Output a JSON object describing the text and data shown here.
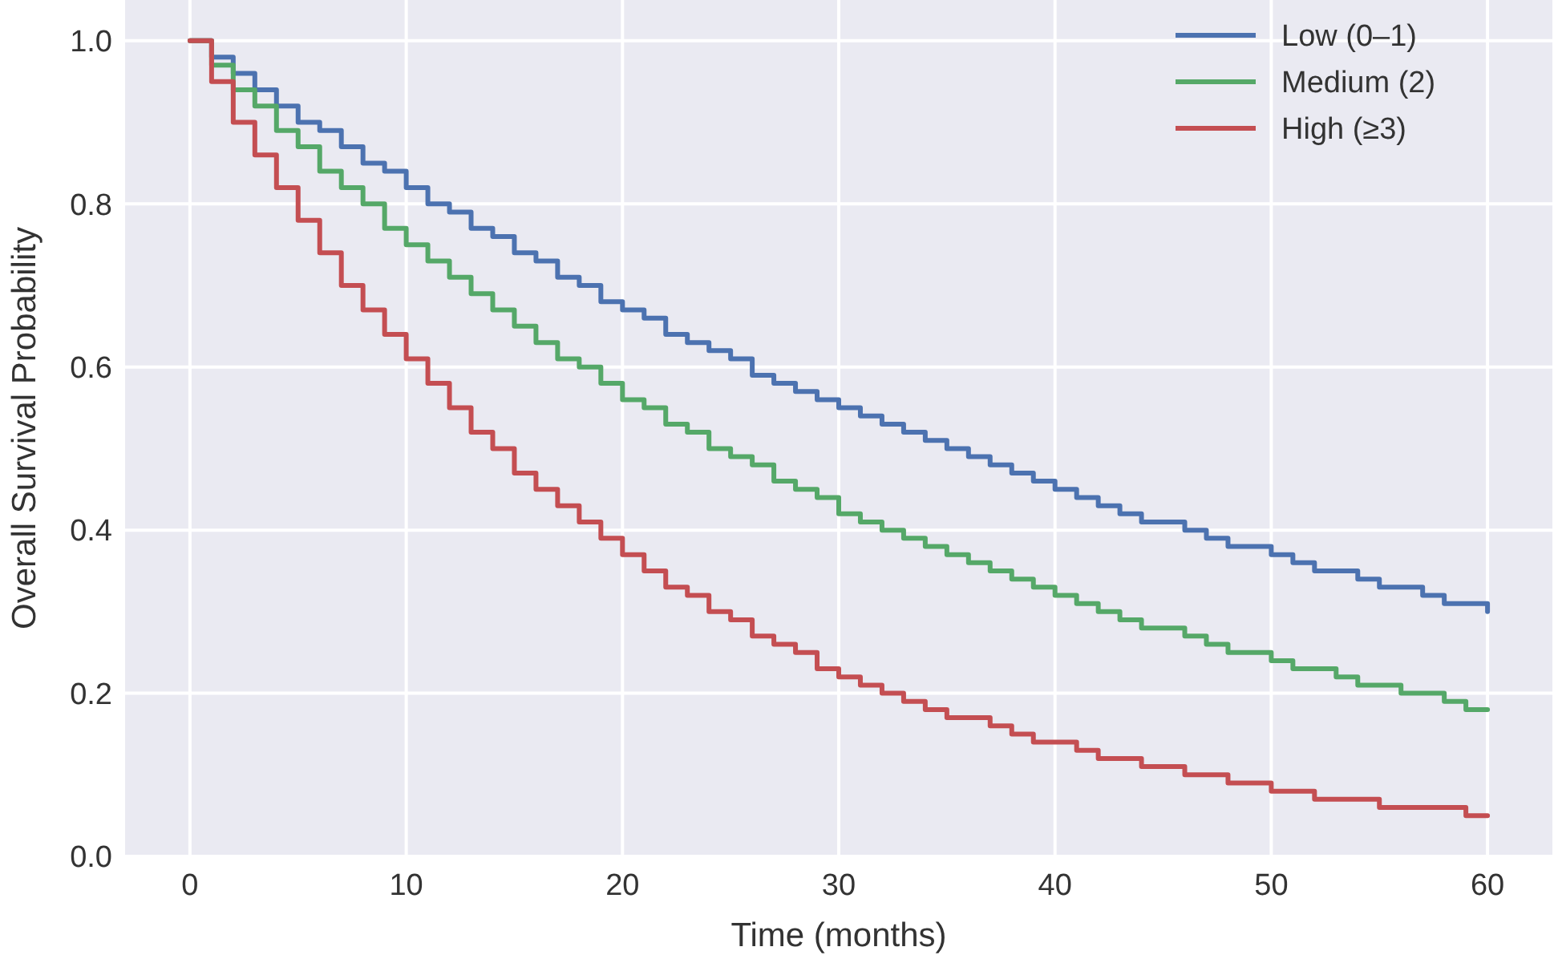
{
  "chart_data": {
    "type": "step",
    "xlabel": "Time (months)",
    "ylabel": "Overall Survival Probability",
    "x": [
      0,
      1,
      2,
      3,
      4,
      5,
      6,
      7,
      8,
      9,
      10,
      11,
      12,
      13,
      14,
      15,
      16,
      17,
      18,
      19,
      20,
      21,
      22,
      23,
      24,
      25,
      26,
      27,
      28,
      29,
      30,
      31,
      32,
      33,
      34,
      35,
      36,
      37,
      38,
      39,
      40,
      41,
      42,
      43,
      44,
      45,
      46,
      47,
      48,
      49,
      50,
      51,
      52,
      53,
      54,
      55,
      56,
      57,
      58,
      59,
      60
    ],
    "series": [
      {
        "name": "Low (0–1)",
        "color": "#4c72b0",
        "values": [
          1.0,
          0.98,
          0.96,
          0.94,
          0.92,
          0.9,
          0.89,
          0.87,
          0.85,
          0.84,
          0.82,
          0.8,
          0.79,
          0.77,
          0.76,
          0.74,
          0.73,
          0.71,
          0.7,
          0.68,
          0.67,
          0.66,
          0.64,
          0.63,
          0.62,
          0.61,
          0.59,
          0.58,
          0.57,
          0.56,
          0.55,
          0.54,
          0.53,
          0.52,
          0.51,
          0.5,
          0.49,
          0.48,
          0.47,
          0.46,
          0.45,
          0.44,
          0.43,
          0.42,
          0.41,
          0.41,
          0.4,
          0.39,
          0.38,
          0.38,
          0.37,
          0.36,
          0.35,
          0.35,
          0.34,
          0.33,
          0.33,
          0.32,
          0.31,
          0.31,
          0.3
        ]
      },
      {
        "name": "Medium (2)",
        "color": "#55a868",
        "values": [
          1.0,
          0.97,
          0.94,
          0.92,
          0.89,
          0.87,
          0.84,
          0.82,
          0.8,
          0.77,
          0.75,
          0.73,
          0.71,
          0.69,
          0.67,
          0.65,
          0.63,
          0.61,
          0.6,
          0.58,
          0.56,
          0.55,
          0.53,
          0.52,
          0.5,
          0.49,
          0.48,
          0.46,
          0.45,
          0.44,
          0.42,
          0.41,
          0.4,
          0.39,
          0.38,
          0.37,
          0.36,
          0.35,
          0.34,
          0.33,
          0.32,
          0.31,
          0.3,
          0.29,
          0.28,
          0.28,
          0.27,
          0.26,
          0.25,
          0.25,
          0.24,
          0.23,
          0.23,
          0.22,
          0.21,
          0.21,
          0.2,
          0.2,
          0.19,
          0.18,
          0.18
        ]
      },
      {
        "name": "High (≥3)",
        "color": "#c44e52",
        "values": [
          1.0,
          0.95,
          0.9,
          0.86,
          0.82,
          0.78,
          0.74,
          0.7,
          0.67,
          0.64,
          0.61,
          0.58,
          0.55,
          0.52,
          0.5,
          0.47,
          0.45,
          0.43,
          0.41,
          0.39,
          0.37,
          0.35,
          0.33,
          0.32,
          0.3,
          0.29,
          0.27,
          0.26,
          0.25,
          0.23,
          0.22,
          0.21,
          0.2,
          0.19,
          0.18,
          0.17,
          0.17,
          0.16,
          0.15,
          0.14,
          0.14,
          0.13,
          0.12,
          0.12,
          0.11,
          0.11,
          0.1,
          0.1,
          0.09,
          0.09,
          0.08,
          0.08,
          0.07,
          0.07,
          0.07,
          0.06,
          0.06,
          0.06,
          0.06,
          0.05,
          0.05
        ]
      }
    ],
    "xlim": [
      -3,
      63
    ],
    "ylim": [
      0,
      1.05
    ],
    "xticks": [
      0,
      10,
      20,
      30,
      40,
      50,
      60
    ],
    "yticks": [
      {
        "value": 0,
        "label": "0.0"
      },
      {
        "value": 0.2,
        "label": "0.2"
      },
      {
        "value": 0.4,
        "label": "0.4"
      },
      {
        "value": 0.6,
        "label": "0.6"
      },
      {
        "value": 0.8,
        "label": "0.8"
      },
      {
        "value": 1,
        "label": "1.0"
      }
    ],
    "grid": true,
    "legend": "top right",
    "line_style": "solid"
  }
}
